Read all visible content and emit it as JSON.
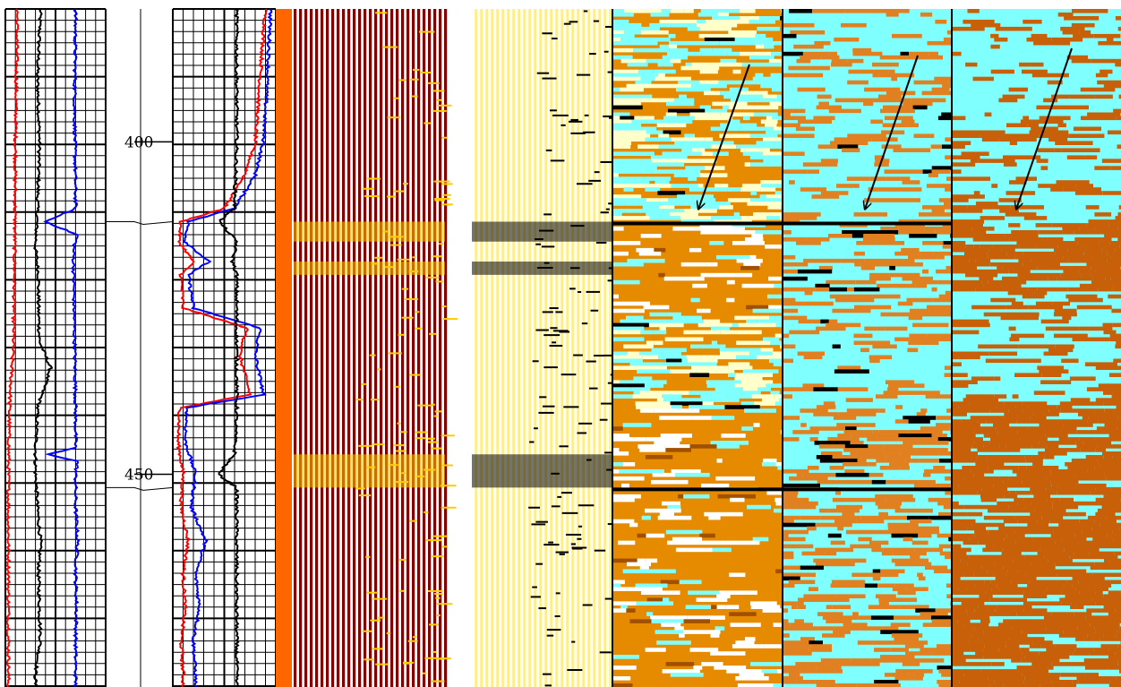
{
  "chart_data": {
    "type": "well-log",
    "depth_unit": "",
    "depth_range": [
      380,
      482
    ],
    "depth_ticks": [
      400,
      450
    ],
    "tracks": [
      {
        "name": "",
        "kind": "curves",
        "grid": true,
        "curves": [
          {
            "color": "#000000",
            "depths": [
              380,
              390,
              400,
              410,
              416,
              420,
              425,
              430,
              434,
              440,
              447,
              450,
              452,
              455,
              460,
              465,
              470,
              475,
              480
            ],
            "values": [
              0.35,
              0.32,
              0.34,
              0.32,
              0.3,
              0.33,
              0.33,
              0.34,
              0.45,
              0.32,
              0.3,
              0.3,
              0.31,
              0.32,
              0.35,
              0.33,
              0.34,
              0.35,
              0.3
            ]
          },
          {
            "color": "#ff0000",
            "depths": [
              380,
              400,
              420,
              430,
              440,
              450,
              460,
              470,
              480
            ],
            "values": [
              0.12,
              0.1,
              0.09,
              0.08,
              0.04,
              0.03,
              0.03,
              0.03,
              0.03
            ]
          },
          {
            "color": "#0000ff",
            "depths": [
              380,
              395,
              410,
              412,
              414,
              416,
              420,
              430,
              440,
              446,
              447,
              448,
              450,
              455,
              460,
              465,
              470,
              475,
              480
            ],
            "values": [
              0.7,
              0.69,
              0.7,
              0.4,
              0.72,
              0.68,
              0.68,
              0.69,
              0.7,
              0.7,
              0.42,
              0.72,
              0.7,
              0.7,
              0.72,
              0.7,
              0.71,
              0.7,
              0.7
            ]
          }
        ]
      },
      {
        "name": "",
        "kind": "curves",
        "grid": true,
        "curves": [
          {
            "color": "#ff0000",
            "depths": [
              380,
              390,
              400,
              405,
              410,
              412,
              415,
              418,
              420,
              425,
              428,
              432,
              438,
              440,
              445,
              450,
              455,
              460,
              465,
              470,
              475,
              480
            ],
            "values": [
              0.9,
              0.85,
              0.8,
              0.7,
              0.5,
              0.08,
              0.06,
              0.2,
              0.08,
              0.1,
              0.72,
              0.65,
              0.75,
              0.07,
              0.05,
              0.1,
              0.08,
              0.15,
              0.1,
              0.12,
              0.08,
              0.1
            ]
          },
          {
            "color": "#0000ff",
            "depths": [
              380,
              390,
              400,
              405,
              410,
              412,
              415,
              418,
              420,
              425,
              428,
              432,
              438,
              440,
              445,
              450,
              455,
              460,
              465,
              470,
              475,
              480
            ],
            "values": [
              0.95,
              0.92,
              0.88,
              0.8,
              0.6,
              0.15,
              0.12,
              0.35,
              0.15,
              0.2,
              0.85,
              0.8,
              0.88,
              0.14,
              0.12,
              0.22,
              0.18,
              0.32,
              0.22,
              0.26,
              0.2,
              0.22
            ]
          },
          {
            "color": "#000000",
            "depths": [
              380,
              400,
              410,
              412,
              415,
              418,
              420,
              440,
              447,
              450,
              452,
              455,
              460,
              480
            ],
            "values": [
              0.62,
              0.62,
              0.6,
              0.45,
              0.62,
              0.58,
              0.62,
              0.62,
              0.6,
              0.44,
              0.62,
              0.62,
              0.62,
              0.62
            ]
          }
        ]
      },
      {
        "name": "",
        "kind": "waveform-density",
        "colors": [
          "#ff6600",
          "#800000",
          "#ffffff",
          "#ffcc00"
        ]
      },
      {
        "name": "",
        "kind": "waveform-density",
        "colors": [
          "#800040",
          "#ffffff",
          "#ffee88",
          "#000000"
        ]
      },
      {
        "name": "",
        "kind": "image",
        "colors": [
          "#e68a00",
          "#80ffff",
          "#ffffcc",
          "#000000"
        ],
        "arrow_depth": 412
      },
      {
        "name": "",
        "kind": "image",
        "colors": [
          "#80ffff",
          "#e08020",
          "#000000"
        ],
        "arrow_depth": 412
      },
      {
        "name": "",
        "kind": "image",
        "colors": [
          "#80ffff",
          "#c8600a"
        ],
        "arrow_depth": 412
      }
    ],
    "annotations": [
      {
        "type": "arrow",
        "track": 4
      },
      {
        "type": "arrow",
        "track": 5
      },
      {
        "type": "arrow",
        "track": 6
      }
    ]
  }
}
